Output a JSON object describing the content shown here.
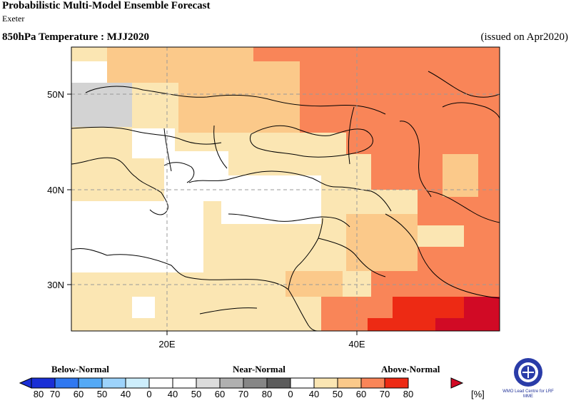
{
  "header": {
    "title": "Probabilistic Multi-Model Ensemble Forecast",
    "subtitle": "Exeter",
    "variable": "850hPa Temperature : MJJ2020",
    "issued": "(issued on Apr2020)"
  },
  "map": {
    "lat_labels": [
      "50N",
      "40N",
      "30N"
    ],
    "lon_labels": [
      "20E",
      "40E"
    ],
    "colors": {
      "white": "#ffffff",
      "gray": "#d3d3d3",
      "above40": "#fbe6b3",
      "above50": "#fbc98a",
      "above60": "#f98558",
      "above70": "#ed2a14",
      "above80": "#d10a25"
    }
  },
  "legend": {
    "categories": [
      "Below-Normal",
      "Near-Normal",
      "Above-Normal"
    ],
    "tick_labels": [
      "80",
      "70",
      "60",
      "50",
      "40",
      "0",
      "40",
      "50",
      "60",
      "70",
      "80",
      "0",
      "40",
      "50",
      "60",
      "70",
      "80"
    ],
    "unit": "[%]",
    "colors": [
      "#1a2fd6",
      "#2f78f0",
      "#54a9f5",
      "#9dd3fb",
      "#cdeefc",
      "#ffffff",
      "#ffffff",
      "#dcdcdc",
      "#b0b0b0",
      "#868686",
      "#5c5c5c",
      "#ffffff",
      "#fbe6b3",
      "#fbc98a",
      "#f98558",
      "#ed2a14",
      "#d10a25"
    ]
  },
  "logo": {
    "text": "WMO Lead Centre for LRF MME"
  }
}
